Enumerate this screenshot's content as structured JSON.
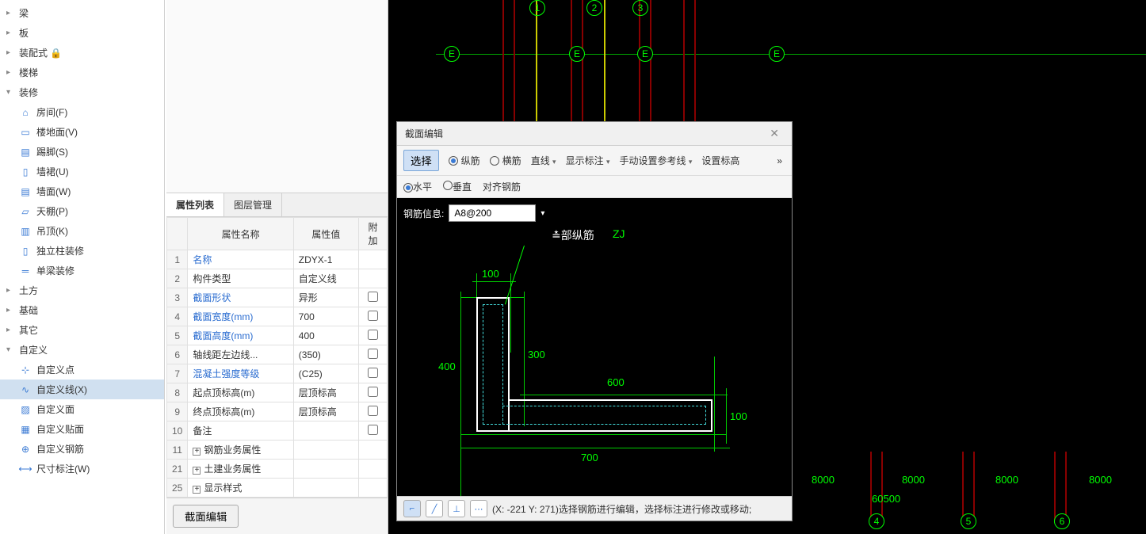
{
  "tree": {
    "top": [
      {
        "label": "梁",
        "toggle": "▸"
      },
      {
        "label": "板",
        "toggle": "▸"
      },
      {
        "label": "装配式 🔒",
        "toggle": "▸"
      },
      {
        "label": "楼梯",
        "toggle": "▸"
      },
      {
        "label": "装修",
        "toggle": "▾"
      }
    ],
    "decor": [
      {
        "label": "房间(F)",
        "icon": "⌂"
      },
      {
        "label": "楼地面(V)",
        "icon": "▭"
      },
      {
        "label": "踢脚(S)",
        "icon": "▤"
      },
      {
        "label": "墙裙(U)",
        "icon": "▯"
      },
      {
        "label": "墙面(W)",
        "icon": "▤"
      },
      {
        "label": "天棚(P)",
        "icon": "▱"
      },
      {
        "label": "吊顶(K)",
        "icon": "▥"
      },
      {
        "label": "独立柱装修",
        "icon": "▯"
      },
      {
        "label": "单梁装修",
        "icon": "═"
      }
    ],
    "bottom": [
      {
        "label": "土方",
        "toggle": "▸"
      },
      {
        "label": "基础",
        "toggle": "▸"
      },
      {
        "label": "其它",
        "toggle": "▸"
      },
      {
        "label": "自定义",
        "toggle": "▾"
      }
    ],
    "custom": [
      {
        "label": "自定义点",
        "icon": "⊹"
      },
      {
        "label": "自定义线(X)",
        "icon": "∿",
        "selected": true
      },
      {
        "label": "自定义面",
        "icon": "▨"
      },
      {
        "label": "自定义贴面",
        "icon": "▦"
      },
      {
        "label": "自定义钢筋",
        "icon": "⊕"
      },
      {
        "label": "尺寸标注(W)",
        "icon": "⟷"
      }
    ]
  },
  "tabs": {
    "t1": "属性列表",
    "t2": "图层管理"
  },
  "propHeader": {
    "name": "属性名称",
    "value": "属性值",
    "extra": "附加"
  },
  "props": [
    {
      "n": "1",
      "name": "名称",
      "value": "ZDYX-1",
      "blue": true,
      "check": false
    },
    {
      "n": "2",
      "name": "构件类型",
      "value": "自定义线",
      "check": false
    },
    {
      "n": "3",
      "name": "截面形状",
      "value": "异形",
      "blue": true,
      "check": true
    },
    {
      "n": "4",
      "name": "截面宽度(mm)",
      "value": "700",
      "blue": true,
      "check": true
    },
    {
      "n": "5",
      "name": "截面高度(mm)",
      "value": "400",
      "blue": true,
      "check": true
    },
    {
      "n": "6",
      "name": "轴线距左边线...",
      "value": "(350)",
      "check": true
    },
    {
      "n": "7",
      "name": "混凝土强度等级",
      "value": "(C25)",
      "blue": true,
      "check": true
    },
    {
      "n": "8",
      "name": "起点顶标高(m)",
      "value": "层顶标高",
      "check": true
    },
    {
      "n": "9",
      "name": "终点顶标高(m)",
      "value": "层顶标高",
      "check": true
    },
    {
      "n": "10",
      "name": "备注",
      "value": "",
      "check": true
    },
    {
      "n": "11",
      "name": "钢筋业务属性",
      "value": "",
      "exp": true,
      "check": false
    },
    {
      "n": "21",
      "name": "土建业务属性",
      "value": "",
      "exp": true,
      "check": false
    },
    {
      "n": "25",
      "name": "显示样式",
      "value": "",
      "exp": true,
      "check": false
    }
  ],
  "btn": {
    "edit": "截面编辑"
  },
  "dialog": {
    "title": "截面编辑",
    "toolbar": {
      "select": "选择",
      "rebar_v": "纵筋",
      "rebar_h": "横筋",
      "line": "直线",
      "showDim": "显示标注",
      "manualRef": "手动设置参考线",
      "setElev": "设置标高"
    },
    "sub": {
      "horiz": "水平",
      "vert": "垂直",
      "align": "对齐钢筋"
    },
    "rebarInfoLabel": "钢筋信息:",
    "rebarValue": "A8@200",
    "sectionLabel1": "≛部纵筋",
    "sectionLabel2": "ZJ",
    "dims": {
      "d100": "100",
      "d300": "300",
      "d400": "400",
      "d600": "600",
      "d100b": "100",
      "d700": "700"
    },
    "status": {
      "coords": "(X: -221 Y: 271)选择钢筋进行编辑，选择标注进行修改或移动;"
    }
  },
  "canvas": {
    "topLabels": [
      "1",
      "2",
      "3"
    ],
    "eLabel": "E",
    "bottomLabels": [
      "4",
      "5",
      "6"
    ],
    "dims": [
      "8000",
      "8000",
      "8000",
      "8000"
    ],
    "totalDim": "60500"
  }
}
